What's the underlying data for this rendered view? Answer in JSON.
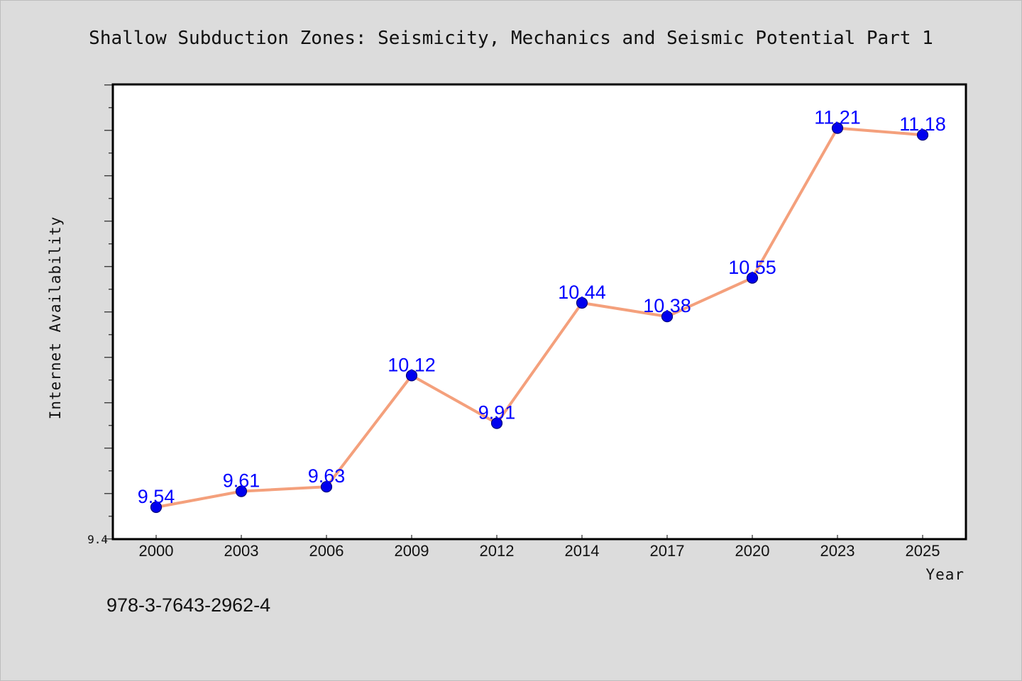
{
  "chart_data": {
    "type": "line",
    "title": "Shallow Subduction Zones: Seismicity, Mechanics and Seismic Potential Part 1",
    "xlabel": "Year",
    "ylabel": "Internet Availability",
    "categories": [
      "2000",
      "2003",
      "2006",
      "2009",
      "2012",
      "2014",
      "2017",
      "2020",
      "2023",
      "2025"
    ],
    "series": [
      {
        "values": [
          9.54,
          9.61,
          9.63,
          10.12,
          9.91,
          10.44,
          10.38,
          10.55,
          11.21,
          11.18
        ],
        "labels": [
          "9.54",
          "9.61",
          "9.63",
          "10.12",
          "9.91",
          "10.44",
          "10.38",
          "10.55",
          "11.21",
          "11.18"
        ],
        "line_color": "#f4a07c",
        "marker_color": "#0000ee"
      }
    ],
    "y_tick_labels": [
      "9.4"
    ],
    "ylim": [
      9.4,
      11.4
    ],
    "grid": false,
    "legend": "none"
  },
  "footer": {
    "isbn": "978-3-7643-2962-4"
  },
  "colors": {
    "background": "#dcdcdc",
    "plot_background": "#ffffff",
    "data_label": "#0000ff"
  }
}
